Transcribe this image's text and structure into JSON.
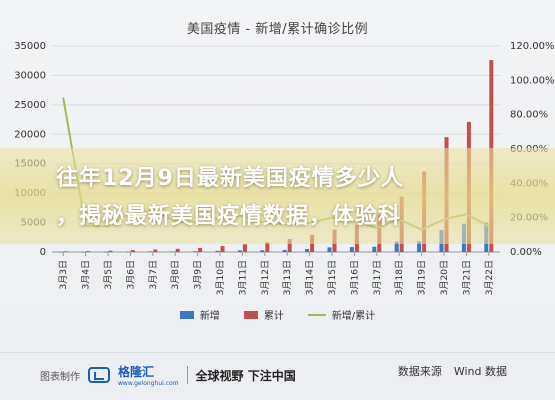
{
  "chart_data": {
    "type": "bar-line-combo",
    "title": "美国疫情 - 新增/累计确诊比例",
    "categories": [
      "3月3日",
      "3月4日",
      "3月5日",
      "3月6日",
      "3月7日",
      "3月8日",
      "3月9日",
      "3月10日",
      "3月11日",
      "3月12日",
      "3月13日",
      "3月14日",
      "3月15日",
      "3月16日",
      "3月17日",
      "3月18日",
      "3月19日",
      "3月20日",
      "3月21日",
      "3月22日"
    ],
    "y_left": {
      "min": 0,
      "max": 35000,
      "ticks": [
        "0",
        "5000",
        "10000",
        "15000",
        "20000",
        "25000",
        "30000",
        "35000"
      ]
    },
    "y_right": {
      "min": 0,
      "max": 1.2,
      "ticks": [
        "0.00%",
        "20.00%",
        "40.00%",
        "60.00%",
        "80.00%",
        "100.00%",
        "120.00%"
      ]
    },
    "series": [
      {
        "name": "新增",
        "kind": "bar",
        "color": "#3a78c2",
        "values": [
          24,
          22,
          34,
          74,
          105,
          95,
          121,
          200,
          271,
          287,
          351,
          511,
          777,
          823,
          887,
          1766,
          1833,
          3735,
          4800,
          5000
        ]
      },
      {
        "name": "累计",
        "kind": "bar",
        "color": "#c0504d",
        "values": [
          122,
          150,
          220,
          320,
          430,
          540,
          700,
          1000,
          1300,
          1650,
          2200,
          2950,
          3800,
          4660,
          6400,
          9400,
          13700,
          19500,
          22100,
          32600
        ]
      },
      {
        "name": "新增/累计",
        "kind": "line",
        "color": "#9bbb59",
        "axis": "right",
        "values": [
          0.9,
          0.15,
          0.15,
          0.23,
          0.24,
          0.18,
          0.17,
          0.2,
          0.21,
          0.17,
          0.16,
          0.17,
          0.2,
          0.18,
          0.14,
          0.19,
          0.13,
          0.19,
          0.22,
          0.15
        ]
      }
    ],
    "legend": "bottom",
    "grid": true
  },
  "overlay": {
    "line1": "往年12月9日最新美国疫情多少人",
    "line2": "，揭秘最新美国疫情数据，体验科"
  },
  "footer": {
    "source_label": "图表制作",
    "brand_name": "格隆汇",
    "brand_sub": "www.gelonghui.com",
    "slogan": "全球视野 下注中国",
    "data_source_label": "数据来源",
    "data_source": "Wind 数据"
  }
}
